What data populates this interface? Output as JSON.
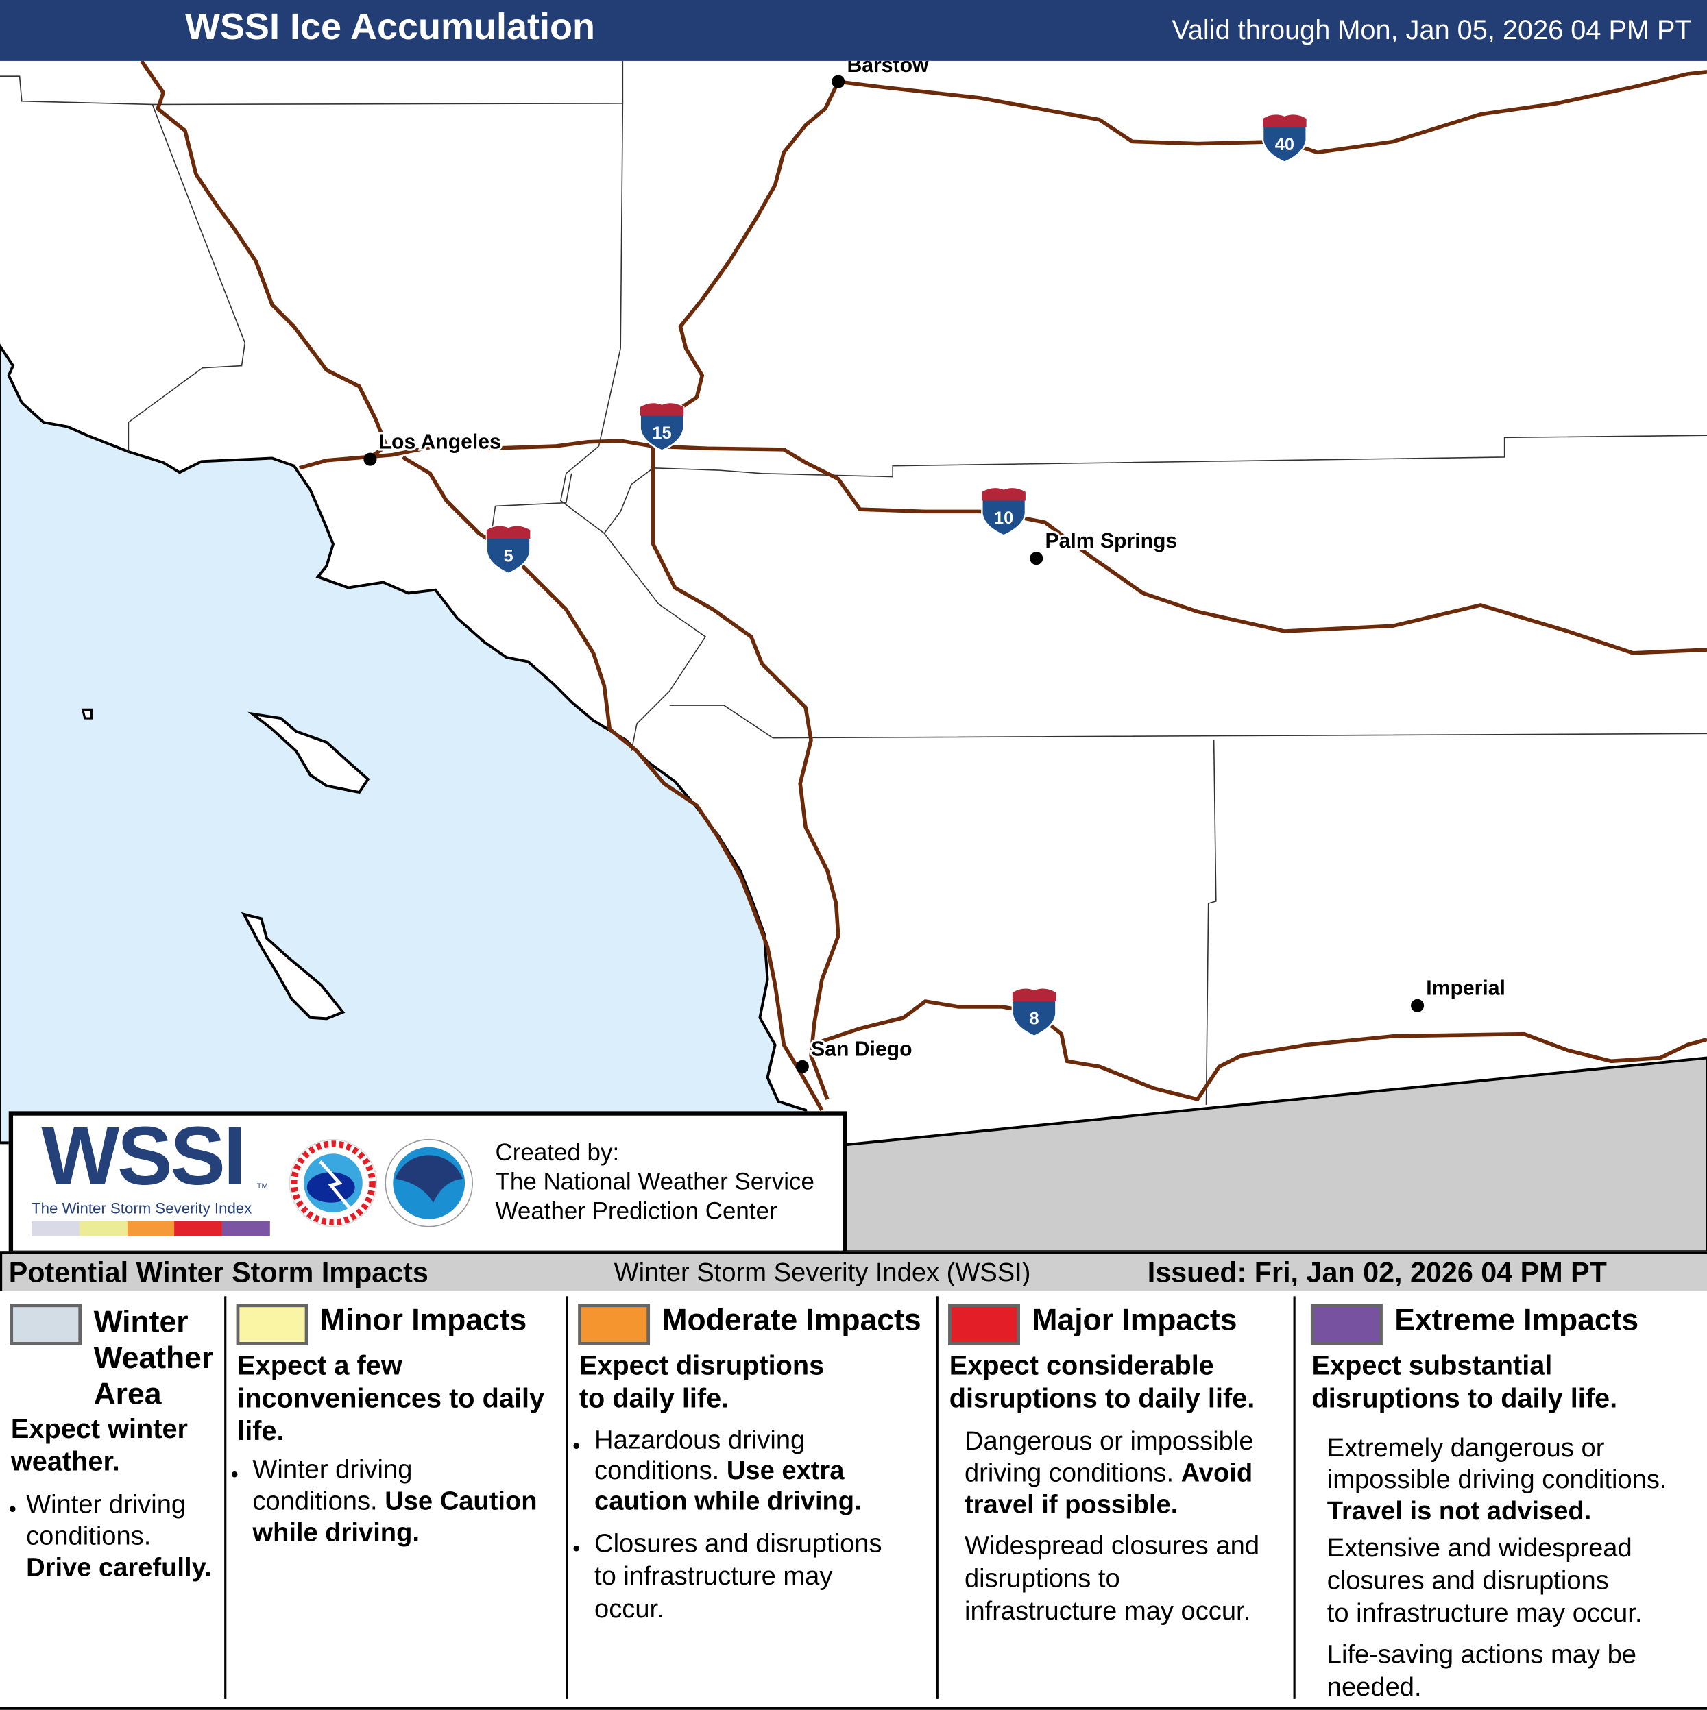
{
  "header": {
    "title": "WSSI Ice Accumulation",
    "valid": "Valid through Mon, Jan 05, 2026 04 PM PT"
  },
  "map": {
    "colors": {
      "ocean": "#dbeefb",
      "land": "#ffffff",
      "mexico": "#cccccc",
      "roads": "#6b2a0a",
      "shield_blue": "#1f4e8c",
      "shield_red": "#b3263a"
    },
    "cities": [
      {
        "name": "Barstow"
      },
      {
        "name": "Los Angeles"
      },
      {
        "name": "Palm Springs"
      },
      {
        "name": "San Diego"
      },
      {
        "name": "Imperial"
      }
    ],
    "interstates": [
      "40",
      "15",
      "10",
      "5",
      "8"
    ]
  },
  "logo": {
    "wssi": "WSSI",
    "tm": "TM",
    "subtitle": "The Winter Storm Severity Index",
    "scale_colors": [
      "#d9d9e8",
      "#ecec96",
      "#f59a36",
      "#e3232b",
      "#7b54a3"
    ],
    "created_by": "Created by:",
    "org1": "The National Weather Service",
    "org2": "Weather Prediction Center"
  },
  "bar": {
    "left": "Potential Winter Storm Impacts",
    "middle": "Winter Storm Severity Index (WSSI)",
    "right": "Issued: Fri, Jan 02, 2026 04 PM PT"
  },
  "legend": [
    {
      "title": "Winter Weather Area",
      "title_lines": [
        "Winter",
        "Weather",
        "Area"
      ],
      "color": "#d3dde6",
      "heading": "Expect winter weather.",
      "heading_lines": [
        "Expect winter",
        "weather."
      ],
      "bullet_lines": [
        "Winter driving",
        "conditions."
      ],
      "bullet_bold": "Drive carefully."
    },
    {
      "title": "Minor Impacts",
      "color": "#f9f5a5",
      "heading_lines": [
        "Expect a few",
        "inconveniences to daily",
        "life."
      ],
      "bullet_lines": [
        "Winter driving",
        "conditions. "
      ],
      "bullet_bold1": "Use Caution",
      "bullet_bold2": "while driving."
    },
    {
      "title": "Moderate Impacts",
      "color": "#f5952f",
      "heading_lines": [
        "Expect disruptions",
        "to daily life."
      ],
      "b1_lines": [
        "Hazardous driving",
        "conditions. "
      ],
      "b1_bold1": "Use extra",
      "b1_bold2": "caution while driving.",
      "b2_lines": [
        "Closures and disruptions",
        "to infrastructure may",
        "occur."
      ]
    },
    {
      "title": "Major Impacts",
      "color": "#e31e26",
      "heading_lines": [
        "Expect considerable",
        "disruptions to daily life."
      ],
      "p1_lines": [
        "Dangerous or impossible",
        "driving conditions. "
      ],
      "p1_bold1": "Avoid",
      "p1_bold2": "travel if possible.",
      "p2_lines": [
        "Widespread closures and",
        "disruptions to",
        "infrastructure may occur."
      ]
    },
    {
      "title": "Extreme Impacts",
      "color": "#7752a1",
      "heading_lines": [
        "Expect substantial",
        "disruptions to daily life."
      ],
      "p1_lines": [
        "Extremely dangerous or",
        "impossible driving conditions."
      ],
      "p1_bold": "Travel is not advised.",
      "p2_lines": [
        "Extensive and widespread",
        "closures and disruptions",
        "to infrastructure may occur."
      ],
      "p3_lines": [
        "Life-saving actions may be",
        "needed."
      ]
    }
  ]
}
